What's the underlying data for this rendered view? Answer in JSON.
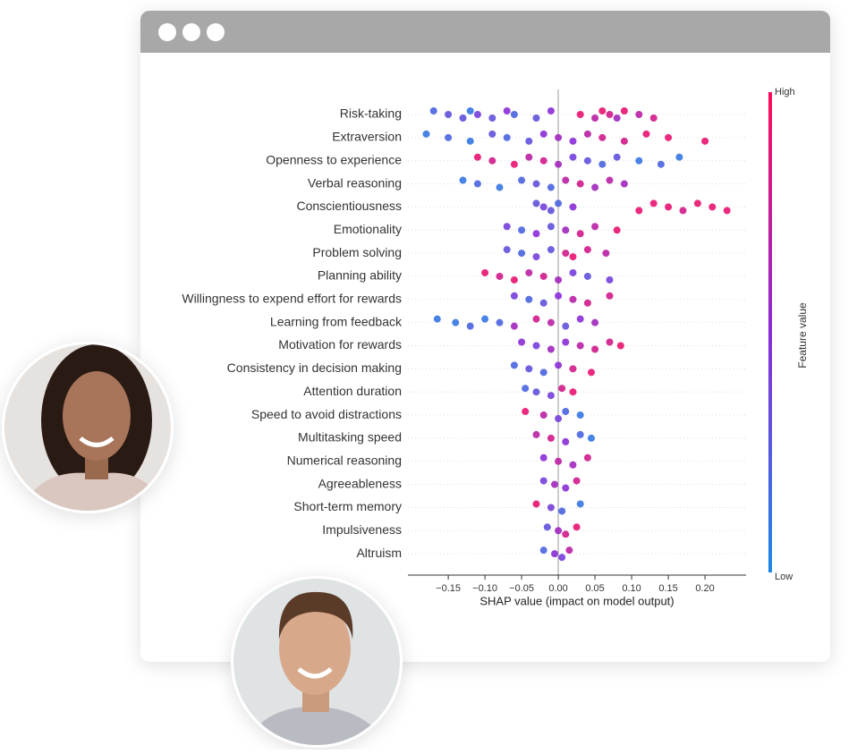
{
  "chart_data": {
    "type": "beeswarm",
    "xlabel": "SHAP value (impact on model output)",
    "xlim": [
      -0.205,
      0.256
    ],
    "xticks": [
      {
        "value": -0.15,
        "label": "−0.15"
      },
      {
        "value": -0.1,
        "label": "−0.10"
      },
      {
        "value": -0.05,
        "label": "−0.05"
      },
      {
        "value": 0,
        "label": "0.00"
      },
      {
        "value": 0.05,
        "label": "0.05"
      },
      {
        "value": 0.1,
        "label": "0.10"
      },
      {
        "value": 0.15,
        "label": "0.15"
      },
      {
        "value": 0.2,
        "label": "0.20"
      }
    ],
    "grid": true,
    "colorbar": {
      "title": "Feature value",
      "high": "High",
      "low": "Low",
      "colors": [
        "#1e88e5",
        "#8a2cd6",
        "#ff0d57"
      ]
    },
    "series": [
      {
        "name": "Risk-taking",
        "values": [
          -0.17,
          -0.15,
          -0.13,
          -0.12,
          -0.11,
          -0.09,
          -0.07,
          -0.06,
          -0.03,
          -0.01,
          0.03,
          0.05,
          0.06,
          0.07,
          0.08,
          0.09,
          0.11,
          0.13
        ],
        "feature_values": [
          0.2,
          0.3,
          0.3,
          0.1,
          0.4,
          0.3,
          0.5,
          0.2,
          0.3,
          0.5,
          0.9,
          0.7,
          0.9,
          0.8,
          0.6,
          0.9,
          0.7,
          0.8
        ]
      },
      {
        "name": "Extraversion",
        "values": [
          -0.18,
          -0.15,
          -0.12,
          -0.09,
          -0.07,
          -0.04,
          -0.02,
          0.0,
          0.02,
          0.04,
          0.06,
          0.09,
          0.12,
          0.15,
          0.2
        ],
        "feature_values": [
          0.1,
          0.2,
          0.1,
          0.3,
          0.2,
          0.3,
          0.5,
          0.6,
          0.5,
          0.7,
          0.8,
          0.8,
          0.9,
          0.9,
          0.9
        ]
      },
      {
        "name": "Openness to experience",
        "values": [
          -0.11,
          -0.09,
          -0.06,
          -0.04,
          -0.02,
          0.0,
          0.02,
          0.04,
          0.06,
          0.08,
          0.11,
          0.14,
          0.165
        ],
        "feature_values": [
          0.9,
          0.8,
          0.9,
          0.7,
          0.8,
          0.6,
          0.4,
          0.3,
          0.2,
          0.3,
          0.1,
          0.2,
          0.1
        ]
      },
      {
        "name": "Verbal reasoning",
        "values": [
          -0.13,
          -0.11,
          -0.08,
          -0.05,
          -0.03,
          -0.01,
          0.01,
          0.03,
          0.05,
          0.07,
          0.09
        ],
        "feature_values": [
          0.1,
          0.2,
          0.1,
          0.2,
          0.3,
          0.2,
          0.7,
          0.8,
          0.6,
          0.7,
          0.6
        ]
      },
      {
        "name": "Conscientiousness",
        "values": [
          -0.03,
          -0.02,
          -0.01,
          0.0,
          0.02,
          0.11,
          0.13,
          0.15,
          0.17,
          0.19,
          0.21,
          0.23
        ],
        "feature_values": [
          0.3,
          0.4,
          0.3,
          0.2,
          0.5,
          0.9,
          0.9,
          0.9,
          0.8,
          0.9,
          0.9,
          0.9
        ]
      },
      {
        "name": "Emotionality",
        "values": [
          -0.07,
          -0.05,
          -0.03,
          -0.01,
          0.01,
          0.03,
          0.05,
          0.08
        ],
        "feature_values": [
          0.4,
          0.2,
          0.5,
          0.3,
          0.6,
          0.8,
          0.7,
          0.9
        ]
      },
      {
        "name": "Problem solving",
        "values": [
          -0.07,
          -0.05,
          -0.03,
          -0.01,
          0.01,
          0.02,
          0.04,
          0.065
        ],
        "feature_values": [
          0.3,
          0.2,
          0.4,
          0.3,
          0.8,
          0.9,
          0.8,
          0.7
        ]
      },
      {
        "name": "Planning ability",
        "values": [
          -0.1,
          -0.08,
          -0.06,
          -0.04,
          -0.02,
          0.0,
          0.02,
          0.04,
          0.07
        ],
        "feature_values": [
          0.9,
          0.8,
          0.9,
          0.7,
          0.8,
          0.6,
          0.4,
          0.3,
          0.4
        ]
      },
      {
        "name": "Willingness to expend effort for rewards",
        "values": [
          -0.06,
          -0.04,
          -0.02,
          0.0,
          0.02,
          0.04,
          0.07
        ],
        "feature_values": [
          0.4,
          0.2,
          0.3,
          0.5,
          0.7,
          0.8,
          0.8
        ]
      },
      {
        "name": "Learning from feedback",
        "values": [
          -0.165,
          -0.14,
          -0.12,
          -0.1,
          -0.08,
          -0.06,
          -0.03,
          -0.01,
          0.01,
          0.03,
          0.05
        ],
        "feature_values": [
          0.1,
          0.1,
          0.2,
          0.1,
          0.2,
          0.6,
          0.8,
          0.7,
          0.3,
          0.5,
          0.6
        ]
      },
      {
        "name": "Motivation for rewards",
        "values": [
          -0.05,
          -0.03,
          -0.01,
          0.01,
          0.03,
          0.05,
          0.07,
          0.085
        ],
        "feature_values": [
          0.5,
          0.4,
          0.6,
          0.5,
          0.7,
          0.8,
          0.8,
          0.9
        ]
      },
      {
        "name": "Consistency in decision making",
        "values": [
          -0.06,
          -0.04,
          -0.02,
          0.0,
          0.02,
          0.045
        ],
        "feature_values": [
          0.2,
          0.3,
          0.2,
          0.5,
          0.8,
          0.9
        ]
      },
      {
        "name": "Attention duration",
        "values": [
          -0.045,
          -0.03,
          -0.01,
          0.005,
          0.02
        ],
        "feature_values": [
          0.2,
          0.3,
          0.4,
          0.8,
          0.9
        ]
      },
      {
        "name": "Speed to avoid distractions",
        "values": [
          -0.045,
          -0.02,
          0.0,
          0.01,
          0.03
        ],
        "feature_values": [
          0.9,
          0.7,
          0.4,
          0.2,
          0.1
        ]
      },
      {
        "name": "Multitasking speed",
        "values": [
          -0.03,
          -0.01,
          0.01,
          0.03,
          0.045
        ],
        "feature_values": [
          0.7,
          0.8,
          0.5,
          0.2,
          0.1
        ]
      },
      {
        "name": "Numerical reasoning",
        "values": [
          -0.02,
          0.0,
          0.02,
          0.04
        ],
        "feature_values": [
          0.5,
          0.7,
          0.6,
          0.8
        ]
      },
      {
        "name": "Agreeableness",
        "values": [
          -0.02,
          -0.005,
          0.01,
          0.025
        ],
        "feature_values": [
          0.4,
          0.6,
          0.5,
          0.8
        ]
      },
      {
        "name": "Short-term memory",
        "values": [
          -0.03,
          -0.01,
          0.005,
          0.03
        ],
        "feature_values": [
          0.9,
          0.4,
          0.2,
          0.1
        ]
      },
      {
        "name": "Impulsiveness",
        "values": [
          -0.015,
          0.0,
          0.01,
          0.025
        ],
        "feature_values": [
          0.3,
          0.6,
          0.8,
          0.9
        ]
      },
      {
        "name": "Altruism",
        "values": [
          -0.02,
          -0.005,
          0.005,
          0.015
        ],
        "feature_values": [
          0.2,
          0.5,
          0.4,
          0.7
        ]
      }
    ]
  }
}
